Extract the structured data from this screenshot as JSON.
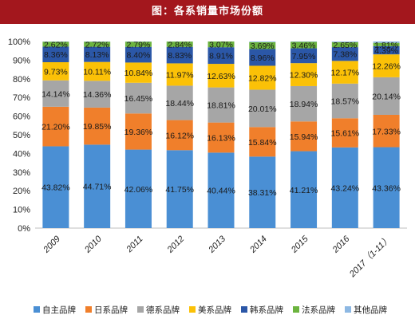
{
  "title": "图：各系销量市场份额",
  "chart_data": {
    "type": "bar",
    "stacked": true,
    "categories": [
      "2009",
      "2010",
      "2011",
      "2012",
      "2013",
      "2014",
      "2015",
      "2016",
      "2017（1-11）"
    ],
    "ylim": [
      0,
      100
    ],
    "yticks": [
      "0%",
      "10%",
      "20%",
      "30%",
      "40%",
      "50%",
      "60%",
      "70%",
      "80%",
      "90%",
      "100%"
    ],
    "legend_position": "bottom",
    "series": [
      {
        "name": "自主品牌",
        "color": "#4a8fd4",
        "values": [
          43.82,
          44.71,
          42.06,
          41.75,
          40.44,
          38.31,
          41.21,
          43.24,
          43.36
        ],
        "labels": [
          "43.82%",
          "44.71%",
          "42.06%",
          "41.75%",
          "40.44%",
          "38.31%",
          "41.21%",
          "43.24%",
          "43.36%"
        ]
      },
      {
        "name": "日系品牌",
        "color": "#f07f2b",
        "values": [
          21.2,
          19.85,
          19.36,
          16.12,
          16.13,
          15.84,
          15.94,
          15.61,
          17.33
        ],
        "labels": [
          "21.20%",
          "19.85%",
          "19.36%",
          "16.12%",
          "16.13%",
          "15.84%",
          "15.94%",
          "15.61%",
          "17.33%"
        ]
      },
      {
        "name": "德系品牌",
        "color": "#a6a6a6",
        "values": [
          14.14,
          14.36,
          16.45,
          18.44,
          18.81,
          20.01,
          18.94,
          18.57,
          20.14
        ],
        "labels": [
          "14.14%",
          "14.36%",
          "16.45%",
          "18.44%",
          "18.81%",
          "20.01%",
          "18.94%",
          "18.57%",
          "20.14%"
        ]
      },
      {
        "name": "美系品牌",
        "color": "#fbc107",
        "values": [
          9.73,
          10.11,
          10.84,
          11.97,
          12.63,
          12.82,
          12.3,
          12.17,
          12.26
        ],
        "labels": [
          "9.73%",
          "10.11%",
          "10.84%",
          "11.97%",
          "12.63%",
          "12.82%",
          "12.30%",
          "12.17%",
          "12.26%"
        ]
      },
      {
        "name": "韩系品牌",
        "color": "#2b57a7",
        "values": [
          8.36,
          8.13,
          8.4,
          8.83,
          8.91,
          8.96,
          7.95,
          7.38,
          4.39
        ],
        "labels": [
          "8.36%",
          "8.13%",
          "8.40%",
          "8.83%",
          "8.91%",
          "8.96%",
          "7.95%",
          "7.38%",
          "4.39%"
        ]
      },
      {
        "name": "法系品牌",
        "color": "#6cb43f",
        "values": [
          2.62,
          2.72,
          2.79,
          2.84,
          3.07,
          3.69,
          3.46,
          2.65,
          1.81
        ],
        "labels": [
          "2.62%",
          "2.72%",
          "2.79%",
          "2.84%",
          "3.07%",
          "3.69%",
          "3.46%",
          "2.65%",
          "1.81%"
        ]
      },
      {
        "name": "其他品牌",
        "color": "#8db8e3",
        "values": [
          0.13,
          0.12,
          0.1,
          0.05,
          0.01,
          0.37,
          0.2,
          0.38,
          0.71
        ],
        "labels": []
      }
    ]
  }
}
